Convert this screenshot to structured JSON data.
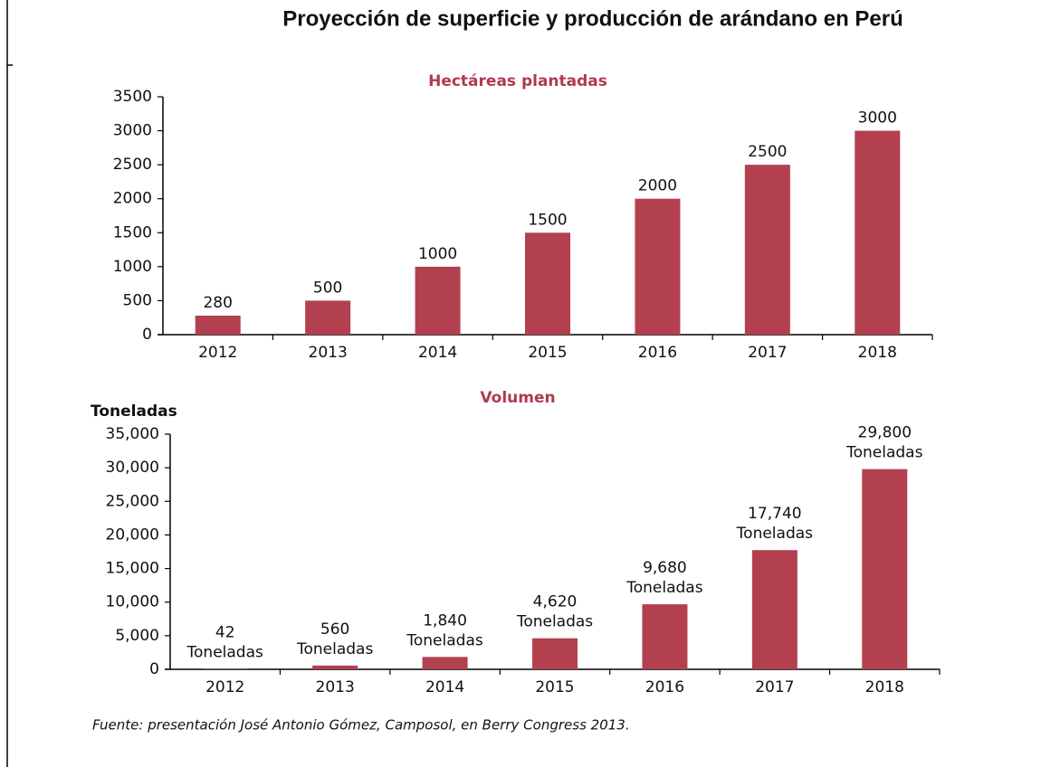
{
  "title": "Proyección de superficie y producción de arándano en Perú",
  "source": "Fuente: presentación José Antonio Gómez, Camposol, en Berry Congress 2013.",
  "chart_data": [
    {
      "type": "bar",
      "title": "Hectáreas plantadas",
      "categories": [
        "2012",
        "2013",
        "2014",
        "2015",
        "2016",
        "2017",
        "2018"
      ],
      "values": [
        280,
        500,
        1000,
        1500,
        2000,
        2500,
        3000
      ],
      "color": "#b3404f",
      "ylim": [
        0,
        3500
      ],
      "yticks": [
        0,
        500,
        1000,
        1500,
        2000,
        2500,
        3000,
        3500
      ]
    },
    {
      "type": "bar",
      "title": "Volumen",
      "y_label": "Toneladas",
      "categories": [
        "2012",
        "2013",
        "2014",
        "2015",
        "2016",
        "2017",
        "2018"
      ],
      "values": [
        42,
        560,
        1840,
        4620,
        9680,
        17740,
        29800
      ],
      "value_labels": [
        "42",
        "560",
        "1,840",
        "4,620",
        "9,680",
        "17,740",
        "29,800"
      ],
      "value_suffix": "Toneladas",
      "color": "#b3404f",
      "ylim": [
        0,
        35000
      ],
      "yticks": [
        0,
        {
          "value": 5000,
          "label": "5,000"
        },
        {
          "value": 10000,
          "label": "10,000"
        },
        {
          "value": 15000,
          "label": "15,000"
        },
        {
          "value": 20000,
          "label": "20,000"
        },
        {
          "value": 25000,
          "label": "25,000"
        },
        {
          "value": 30000,
          "label": "30,000"
        },
        {
          "value": 35000,
          "label": "35,000"
        }
      ]
    }
  ]
}
